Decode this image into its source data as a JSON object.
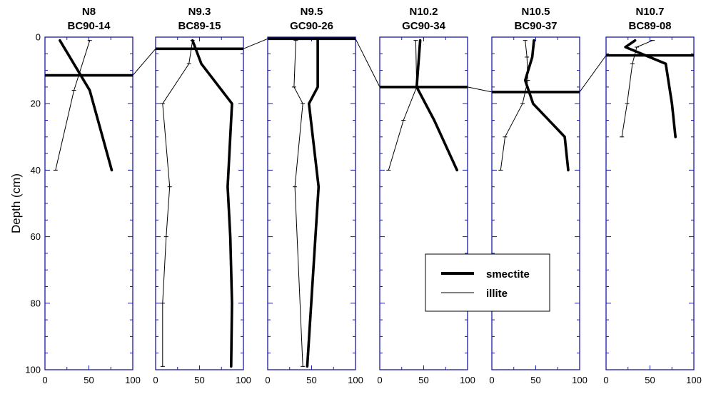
{
  "chart_data": {
    "type": "line",
    "ylabel": "Depth (cm)",
    "y_ticks": [
      "0",
      "20",
      "40",
      "60",
      "80",
      "100"
    ],
    "x_ticks": [
      "0",
      "50",
      "100"
    ],
    "xlim": [
      0,
      100
    ],
    "ylim": [
      0,
      100
    ],
    "y_inverted": true,
    "frame_color": "#1a1aa8",
    "legend": {
      "placement": "lower-right",
      "entries": [
        {
          "name": "smectite",
          "style": "thick"
        },
        {
          "name": "illite",
          "style": "thin"
        }
      ]
    },
    "panels": [
      {
        "title_line1": "N8",
        "title_line2": "BC90-14",
        "marker_depth": 11.5,
        "series": [
          {
            "name": "smectite",
            "x": [
              17,
              51,
              76
            ],
            "y": [
              1,
              16,
              40
            ]
          },
          {
            "name": "illite",
            "x": [
              51,
              33,
              12
            ],
            "y": [
              1,
              16,
              40
            ]
          }
        ]
      },
      {
        "title_line1": "N9.3",
        "title_line2": "BC89-15",
        "marker_depth": 3.5,
        "series": [
          {
            "name": "smectite",
            "x": [
              42,
              52,
              87,
              82,
              85,
              87,
              86
            ],
            "y": [
              1,
              8,
              20,
              45,
              60,
              80,
              99
            ]
          },
          {
            "name": "illite",
            "x": [
              42,
              38,
              8,
              16,
              12,
              8,
              8
            ],
            "y": [
              1,
              8,
              20,
              45,
              60,
              80,
              99
            ]
          }
        ]
      },
      {
        "title_line1": "N9.5",
        "title_line2": "GC90-26",
        "marker_depth": 0.5,
        "series": [
          {
            "name": "smectite",
            "x": [
              57,
              57,
              47,
              58,
              45
            ],
            "y": [
              1,
              15,
              20,
              45,
              99
            ]
          },
          {
            "name": "illite",
            "x": [
              32,
              30,
              40,
              31,
              40
            ],
            "y": [
              1,
              15,
              20,
              45,
              99
            ]
          }
        ]
      },
      {
        "title_line1": "N10.2",
        "title_line2": "GC90-34",
        "marker_depth": 15,
        "series": [
          {
            "name": "smectite",
            "x": [
              46,
              42,
              62,
              88
            ],
            "y": [
              1,
              15,
              25,
              40
            ]
          },
          {
            "name": "illite",
            "x": [
              41,
              42,
              27,
              10
            ],
            "y": [
              1,
              15,
              25,
              40
            ]
          }
        ]
      },
      {
        "title_line1": "N10.5",
        "title_line2": "BC90-37",
        "marker_depth": 16.5,
        "series": [
          {
            "name": "smectite",
            "x": [
              48,
              46,
              38,
              47,
              83,
              87
            ],
            "y": [
              1,
              6,
              13,
              20,
              30,
              40
            ]
          },
          {
            "name": "illite",
            "x": [
              38,
              40,
              41,
              35,
              15,
              10
            ],
            "y": [
              1,
              6,
              13,
              20,
              30,
              40
            ]
          }
        ]
      },
      {
        "title_line1": "N10.7",
        "title_line2": "BC89-08",
        "marker_depth": 5.5,
        "series": [
          {
            "name": "smectite",
            "x": [
              33,
              22,
              68,
              75,
              79
            ],
            "y": [
              1,
              3,
              8,
              20,
              30
            ]
          },
          {
            "name": "illite",
            "x": [
              53,
              35,
              30,
              24,
              18
            ],
            "y": [
              1,
              3,
              8,
              20,
              30
            ]
          }
        ]
      }
    ]
  }
}
